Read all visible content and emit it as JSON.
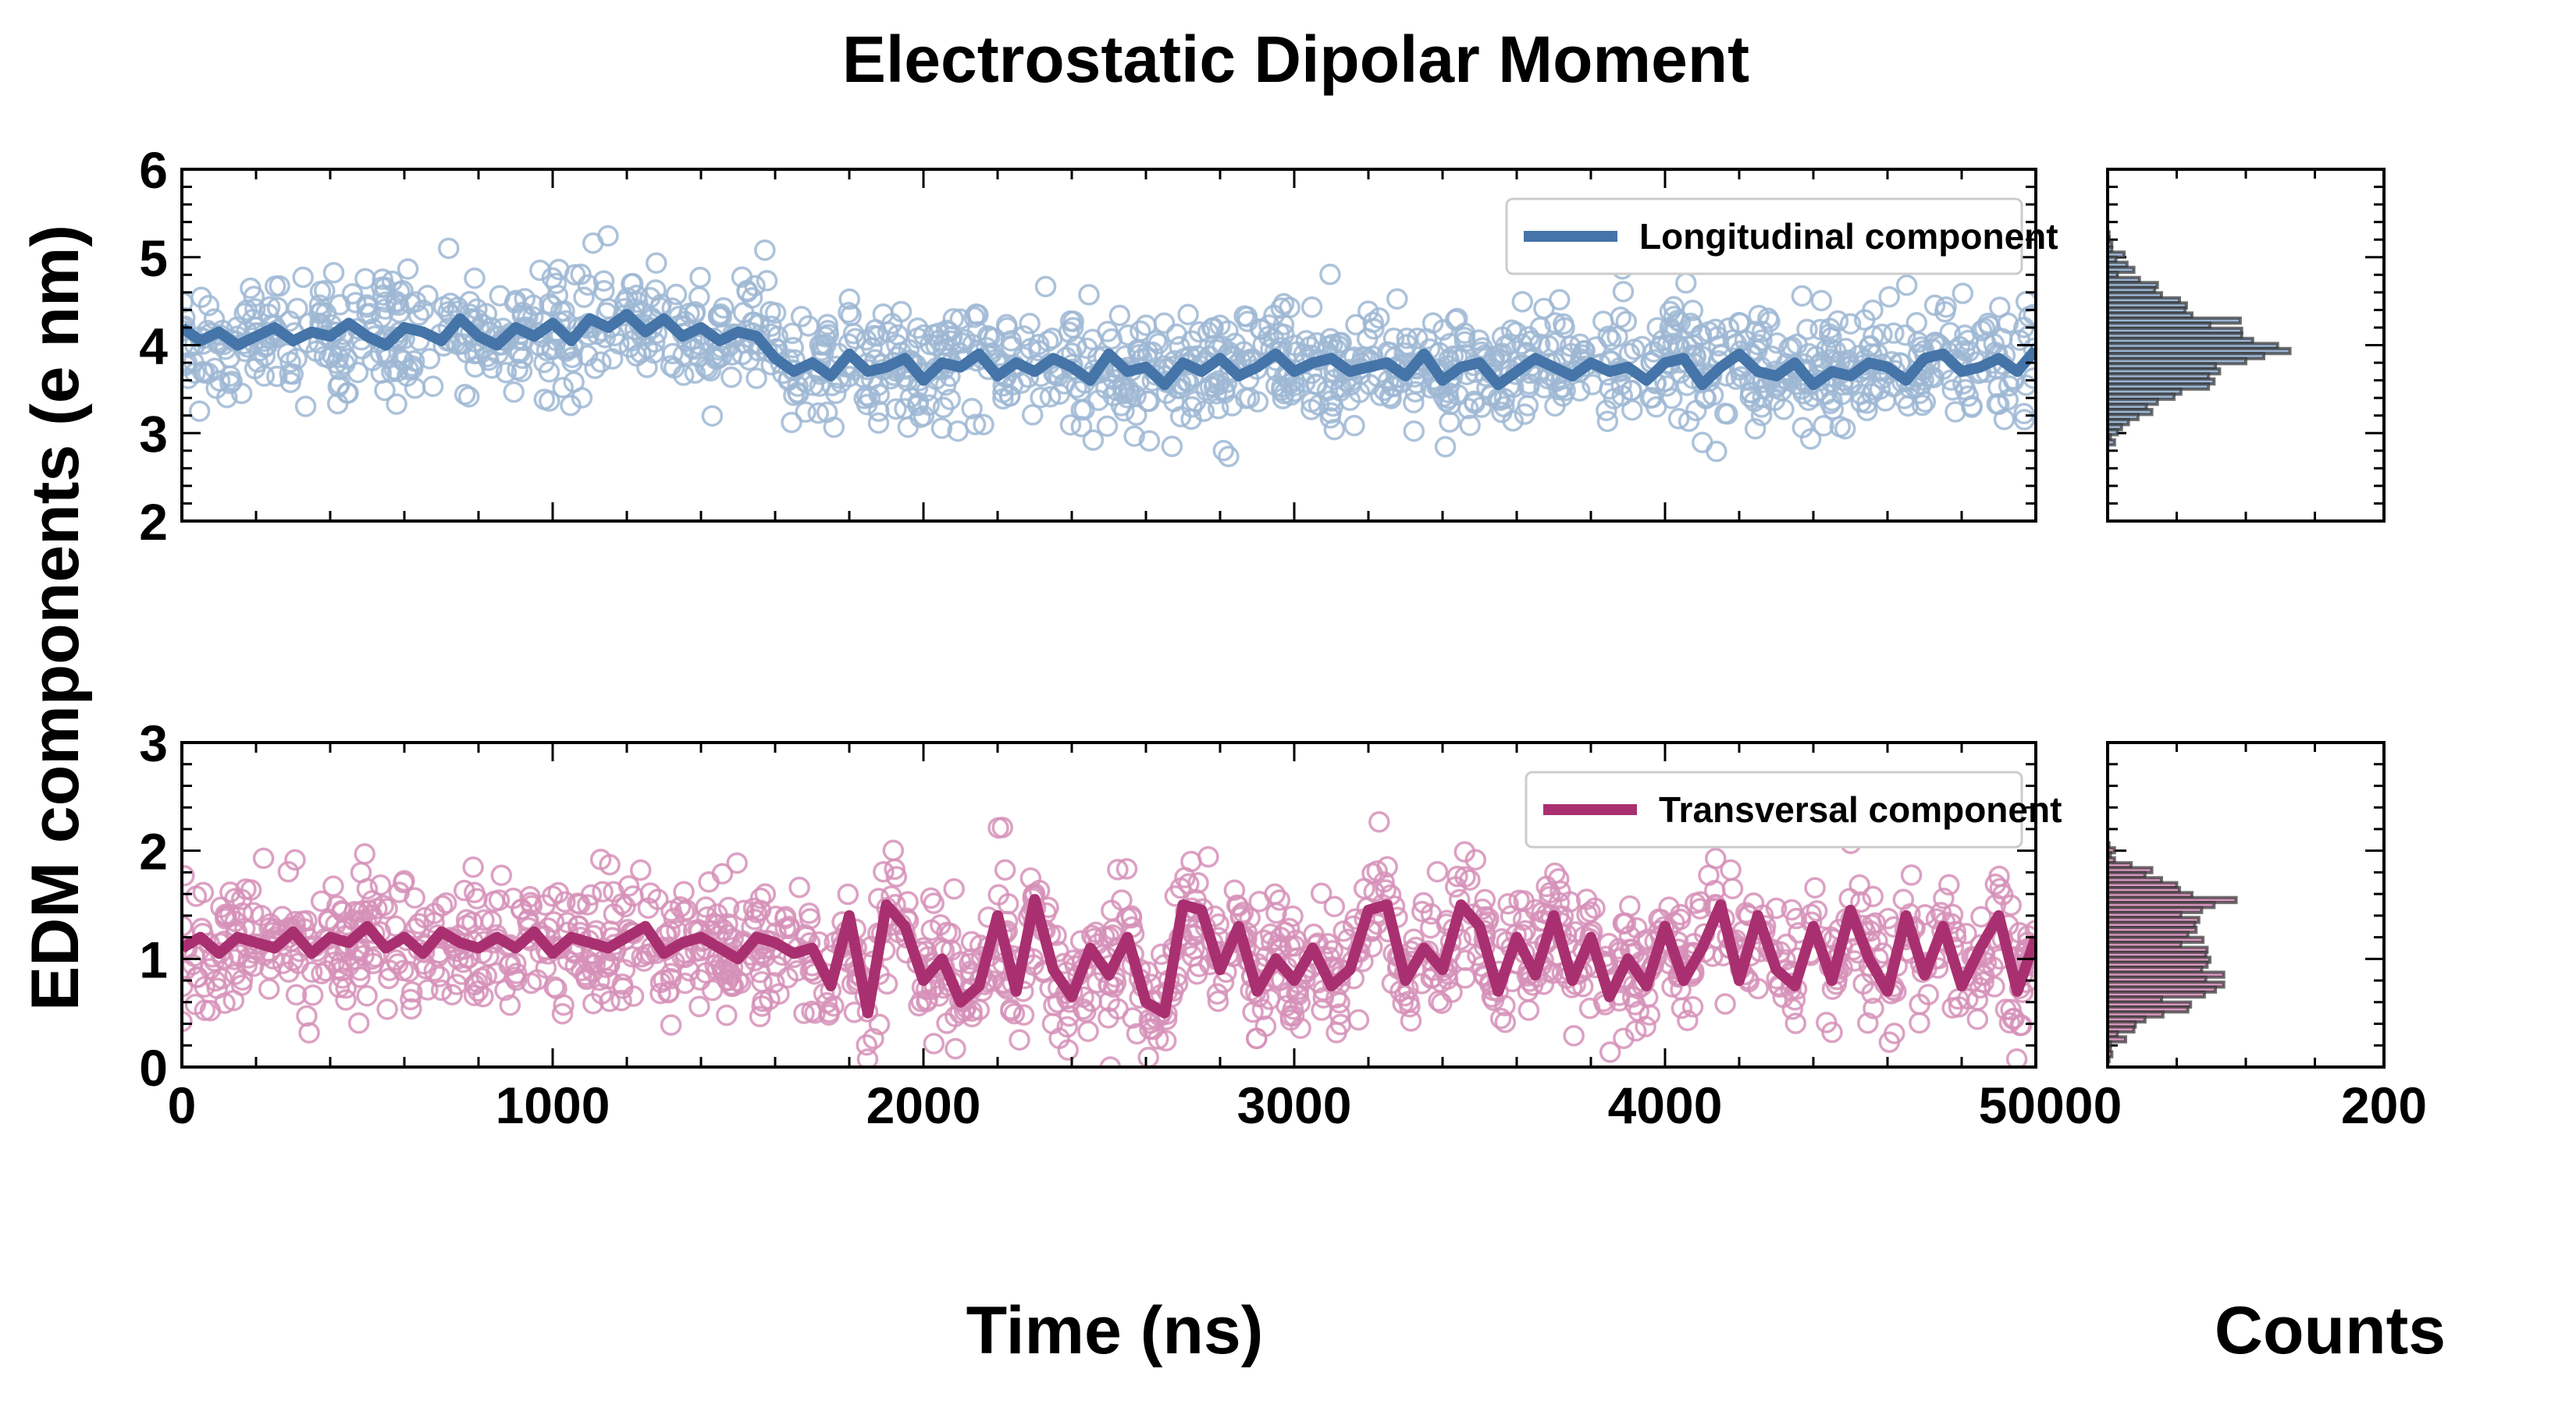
{
  "chart_data": [
    {
      "type": "scatter",
      "panel": "top",
      "title": "Electrostatic Dipolar Moment",
      "ylabel": "EDM components (e nm)",
      "xlabel": "Time (ns)",
      "xlim": [
        0,
        5000
      ],
      "ylim": [
        2,
        6
      ],
      "xticks": [
        0,
        1000,
        2000,
        3000,
        4000,
        5000
      ],
      "yticks": [
        2,
        3,
        4,
        5,
        6
      ],
      "legend": {
        "label": "Longitudinal component",
        "placement": "top-right"
      },
      "colors": {
        "line": "#4474a8",
        "marker": "#9db7d3",
        "hist_fill": "#9cb6d4"
      },
      "moving_average": {
        "x_step": 50,
        "values": [
          4.2,
          4.05,
          4.15,
          4.0,
          4.1,
          4.2,
          4.05,
          4.15,
          4.1,
          4.25,
          4.1,
          4.0,
          4.2,
          4.15,
          4.05,
          4.3,
          4.1,
          4.0,
          4.2,
          4.1,
          4.25,
          4.05,
          4.3,
          4.2,
          4.35,
          4.15,
          4.3,
          4.1,
          4.2,
          4.05,
          4.15,
          4.1,
          3.85,
          3.7,
          3.8,
          3.65,
          3.9,
          3.7,
          3.75,
          3.85,
          3.6,
          3.8,
          3.75,
          3.9,
          3.65,
          3.8,
          3.7,
          3.85,
          3.75,
          3.6,
          3.9,
          3.7,
          3.75,
          3.55,
          3.8,
          3.7,
          3.85,
          3.65,
          3.75,
          3.9,
          3.7,
          3.8,
          3.85,
          3.7,
          3.75,
          3.8,
          3.65,
          3.9,
          3.6,
          3.75,
          3.8,
          3.55,
          3.7,
          3.85,
          3.75,
          3.65,
          3.8,
          3.7,
          3.75,
          3.6,
          3.8,
          3.85,
          3.55,
          3.75,
          3.9,
          3.7,
          3.65,
          3.8,
          3.55,
          3.7,
          3.65,
          3.8,
          3.75,
          3.6,
          3.85,
          3.9,
          3.7,
          3.75,
          3.85,
          3.7,
          3.95
        ]
      },
      "scatter_spread": 0.33,
      "scatter_count": 1400,
      "histogram": {
        "xlabel": "Counts",
        "xlim": [
          0,
          200
        ],
        "xticks": [
          0,
          200
        ],
        "bin_top_center": 5.26,
        "bin_width": 0.0577,
        "counts": [
          1,
          1,
          3,
          3,
          12,
          6,
          14,
          19,
          7,
          23,
          36,
          34,
          39,
          52,
          57,
          56,
          61,
          96,
          74,
          97,
          97,
          105,
          123,
          132,
          113,
          100,
          78,
          81,
          73,
          77,
          73,
          53,
          48,
          36,
          28,
          32,
          22,
          15,
          10,
          7,
          2,
          5
        ]
      }
    },
    {
      "type": "scatter",
      "panel": "bottom",
      "xlabel": "Time (ns)",
      "xlim": [
        0,
        5000
      ],
      "ylim": [
        0,
        3
      ],
      "xticks": [
        0,
        1000,
        2000,
        3000,
        4000,
        5000
      ],
      "yticks": [
        0,
        1,
        2,
        3
      ],
      "legend": {
        "label": "Transversal component",
        "placement": "top-right"
      },
      "colors": {
        "line": "#a93070",
        "marker": "#d690b8",
        "hist_fill": "#da98c0"
      },
      "moving_average": {
        "x_step": 50,
        "values": [
          1.1,
          1.2,
          1.05,
          1.2,
          1.15,
          1.1,
          1.25,
          1.05,
          1.2,
          1.15,
          1.3,
          1.1,
          1.2,
          1.05,
          1.25,
          1.15,
          1.1,
          1.2,
          1.1,
          1.25,
          1.05,
          1.2,
          1.15,
          1.1,
          1.2,
          1.3,
          1.05,
          1.15,
          1.2,
          1.1,
          1.0,
          1.2,
          1.15,
          1.05,
          1.1,
          0.75,
          1.4,
          0.5,
          1.5,
          1.3,
          0.8,
          1.0,
          0.6,
          0.75,
          1.4,
          0.7,
          1.55,
          0.9,
          0.65,
          1.1,
          0.85,
          1.2,
          0.6,
          0.5,
          1.5,
          1.45,
          0.9,
          1.3,
          0.7,
          1.0,
          0.8,
          1.1,
          0.75,
          0.9,
          1.45,
          1.5,
          0.8,
          1.1,
          0.9,
          1.5,
          1.3,
          0.7,
          1.2,
          0.85,
          1.4,
          0.8,
          1.2,
          0.65,
          1.0,
          0.75,
          1.3,
          0.8,
          1.1,
          1.5,
          0.8,
          1.4,
          0.9,
          0.75,
          1.3,
          0.8,
          1.45,
          1.0,
          0.7,
          1.4,
          0.85,
          1.3,
          0.75,
          1.1,
          1.4,
          0.7,
          1.2
        ]
      },
      "scatter_spread": 0.3,
      "scatter_count": 1400,
      "histogram": {
        "xlabel": "Counts",
        "xlim": [
          0,
          200
        ],
        "xticks": [
          0,
          200
        ],
        "bin_top_center": 2.05,
        "bin_width": 0.046,
        "counts": [
          1,
          5,
          2,
          5,
          17,
          32,
          27,
          39,
          50,
          52,
          61,
          93,
          77,
          68,
          53,
          66,
          63,
          64,
          58,
          69,
          53,
          72,
          71,
          74,
          72,
          68,
          84,
          71,
          84,
          78,
          70,
          39,
          60,
          58,
          40,
          27,
          20,
          19,
          7,
          13,
          2,
          2,
          3,
          1
        ]
      }
    }
  ]
}
